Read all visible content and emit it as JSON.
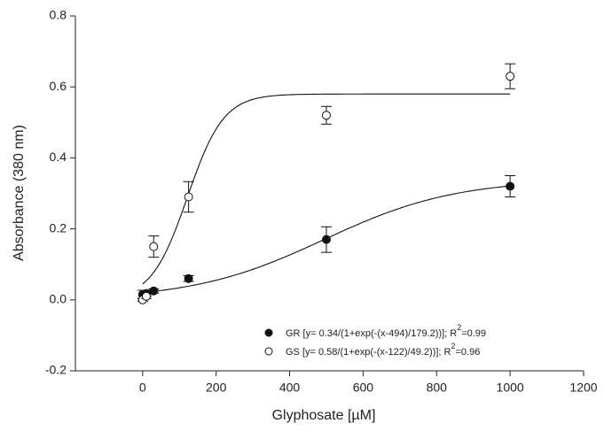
{
  "chart_data": {
    "type": "scatter",
    "xlabel": "Glyphosate [µM]",
    "ylabel": "Absorbance (380 nm)",
    "xlim": [
      -183,
      1200
    ],
    "xticks": [
      0,
      200,
      400,
      600,
      800,
      1000,
      1200
    ],
    "ylim": [
      -0.2,
      0.8
    ],
    "yticks": [
      -0.2,
      {
        "value": 0,
        "label": "0.0"
      },
      0.2,
      0.4,
      0.6,
      0.8
    ],
    "series": [
      {
        "name": "GR [y= 0.34/(1+exp(-(x-494)/179.2))]; R",
        "name_sup": "2",
        "name_tail": "=0.99",
        "color": "#111",
        "filled": true,
        "x": [
          0,
          10,
          30,
          125,
          500,
          1000
        ],
        "values": [
          0.015,
          0.018,
          0.025,
          0.06,
          0.17,
          0.32
        ],
        "errors": [
          0.012,
          0.008,
          0.006,
          0.008,
          0.036,
          0.03
        ],
        "fit": {
          "a": 0.34,
          "x0": 494,
          "b": 179.2
        }
      },
      {
        "name": "GS [y= 0.58/(1+exp(-(x-122)/49.2))]; R",
        "name_sup": "2",
        "name_tail": "=0.96",
        "color": "#111",
        "filled": false,
        "x": [
          0,
          10,
          30,
          125,
          500,
          1000
        ],
        "values": [
          0.0,
          0.01,
          0.15,
          0.29,
          0.52,
          0.63
        ],
        "errors": [
          0.004,
          0.006,
          0.03,
          0.043,
          0.025,
          0.035
        ],
        "fit": {
          "a": 0.58,
          "x0": 122,
          "b": 49.2
        }
      }
    ]
  }
}
